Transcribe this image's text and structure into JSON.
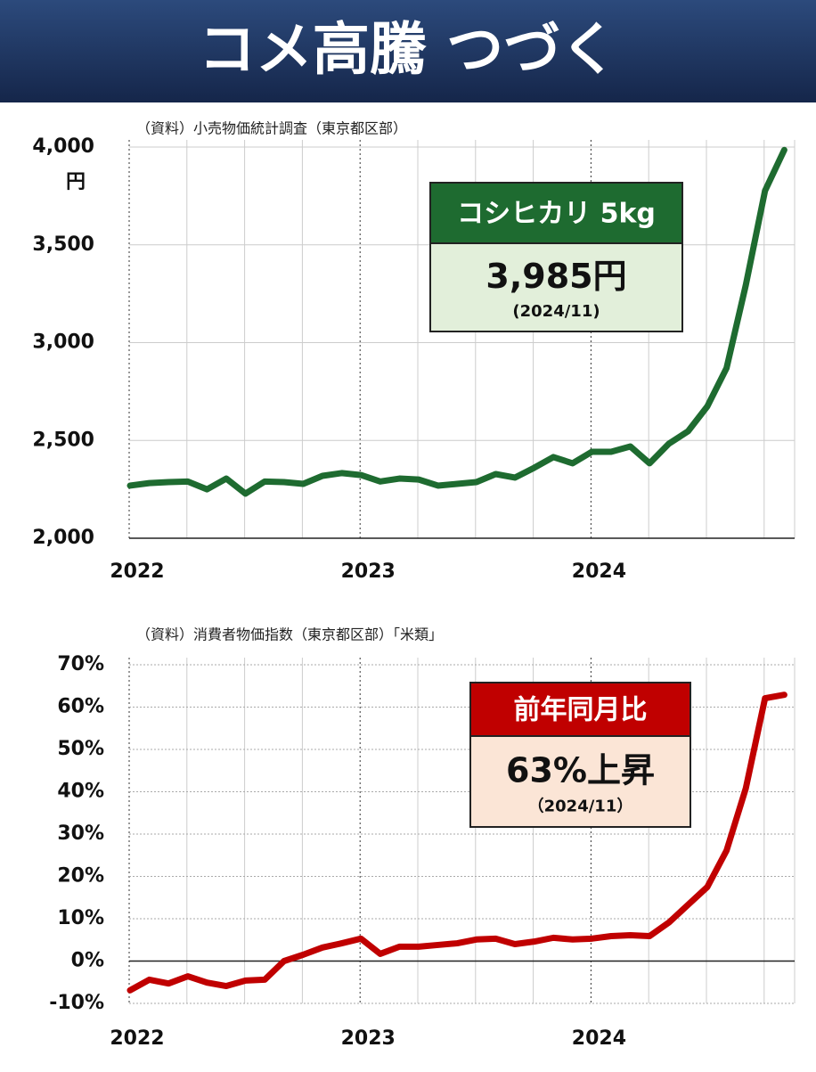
{
  "header": {
    "title": "コメ高騰 つづく"
  },
  "chart_data": [
    {
      "type": "line",
      "source": "（資料）小売物価統計調査（東京都区部）",
      "unit": "円",
      "categories": [
        "2022",
        null,
        null,
        null,
        null,
        null,
        null,
        null,
        null,
        null,
        null,
        null,
        "2023",
        null,
        null,
        null,
        null,
        null,
        null,
        null,
        null,
        null,
        null,
        null,
        "2024",
        null,
        null,
        null,
        null,
        null,
        null,
        null,
        null,
        null,
        null
      ],
      "values": [
        2269,
        2282,
        2287,
        2290,
        2250,
        2305,
        2228,
        2290,
        2287,
        2278,
        2319,
        2333,
        2323,
        2290,
        2305,
        2300,
        2269,
        2278,
        2287,
        2328,
        2310,
        2360,
        2415,
        2383,
        2442,
        2442,
        2469,
        2383,
        2483,
        2547,
        2674,
        2870,
        3294,
        3777,
        3985
      ],
      "color": "#1e6b30",
      "ylim": [
        2000,
        4000
      ],
      "yticks": [
        {
          "value": 2000,
          "label": "2,000"
        },
        {
          "value": 2500,
          "label": "2,500"
        },
        {
          "value": 3000,
          "label": "3,000"
        },
        {
          "value": 3500,
          "label": "3,500"
        },
        {
          "value": 4000,
          "label": "4,000"
        }
      ],
      "grid": true,
      "annotation": {
        "title": "コシヒカリ 5kg",
        "value": "3,985円",
        "date": "(2024/11)"
      }
    },
    {
      "type": "line",
      "source": "（資料）消費者物価指数（東京都区部）「米類」",
      "categories": [
        "2022",
        null,
        null,
        null,
        null,
        null,
        null,
        null,
        null,
        null,
        null,
        null,
        "2023",
        null,
        null,
        null,
        null,
        null,
        null,
        null,
        null,
        null,
        null,
        null,
        "2024",
        null,
        null,
        null,
        null,
        null,
        null,
        null,
        null,
        null,
        null
      ],
      "values": [
        -6.9,
        -4.4,
        -5.3,
        -3.6,
        -5.1,
        -5.9,
        -4.6,
        -4.4,
        0.0,
        1.5,
        3.2,
        4.2,
        5.3,
        1.7,
        3.4,
        3.4,
        3.8,
        4.2,
        5.1,
        5.3,
        4.0,
        4.6,
        5.5,
        5.1,
        5.3,
        5.9,
        6.1,
        5.9,
        9.1,
        13.3,
        17.5,
        26.1,
        40.8,
        62.1,
        62.9
      ],
      "color": "#c00000",
      "ylim": [
        -10,
        70
      ],
      "yticks": [
        {
          "value": -10,
          "label": "-10%"
        },
        {
          "value": 0,
          "label": "0%"
        },
        {
          "value": 10,
          "label": "10%"
        },
        {
          "value": 20,
          "label": "20%"
        },
        {
          "value": 30,
          "label": "30%"
        },
        {
          "value": 40,
          "label": "40%"
        },
        {
          "value": 50,
          "label": "50%"
        },
        {
          "value": 60,
          "label": "60%"
        },
        {
          "value": 70,
          "label": "70%"
        }
      ],
      "grid": true,
      "annotation": {
        "title": "前年同月比",
        "value": "63%上昇",
        "date": "（2024/11）"
      }
    }
  ]
}
